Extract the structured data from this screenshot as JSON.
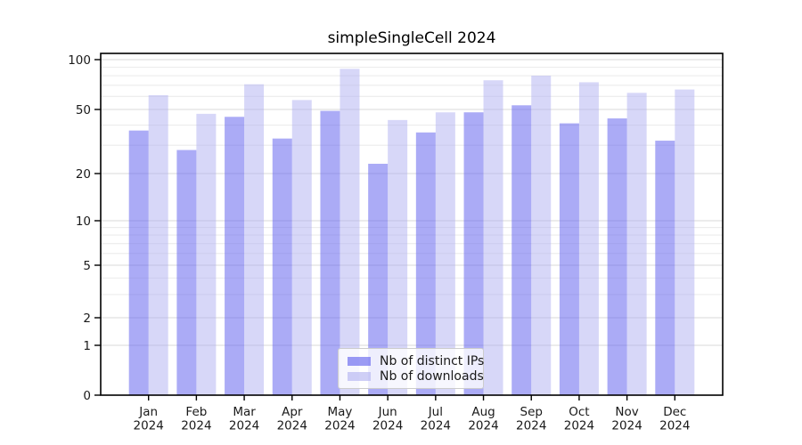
{
  "figure": {
    "background": "#ffffff"
  },
  "chart_data": {
    "type": "bar",
    "title": "simpleSingleCell 2024",
    "categories": [
      "Jan",
      "Feb",
      "Mar",
      "Apr",
      "May",
      "Jun",
      "Jul",
      "Aug",
      "Sep",
      "Oct",
      "Nov",
      "Dec"
    ],
    "x_year_label": "2024",
    "series": [
      {
        "name": "Nb of distinct IPs",
        "color": "#6666ee",
        "fill_alpha": 0.55,
        "values": [
          37,
          28,
          45,
          33,
          49,
          23,
          36,
          48,
          53,
          41,
          44,
          32
        ]
      },
      {
        "name": "Nb of downloads",
        "color": "#aaaaf0",
        "fill_alpha": 0.47,
        "values": [
          61,
          47,
          71,
          57,
          88,
          43,
          48,
          75,
          80,
          73,
          63,
          66
        ]
      }
    ],
    "xlabel": "",
    "ylabel": "",
    "yaxis": {
      "scale": "log-like, compressed toward zero",
      "tick_values": [
        0,
        1,
        2,
        5,
        10,
        20,
        50,
        100
      ],
      "minor_gridline_values": [
        3,
        4,
        6,
        7,
        8,
        9,
        30,
        40,
        60,
        70,
        80,
        90
      ],
      "range": [
        0,
        110
      ]
    },
    "legend": {
      "position": "lower center"
    },
    "grid": true,
    "colors": {
      "major_grid": "#d9d9d9",
      "minor_grid": "#ececec",
      "axis": "#000000",
      "text": "#1a1a1a",
      "legend_border": "#cccccc"
    }
  }
}
